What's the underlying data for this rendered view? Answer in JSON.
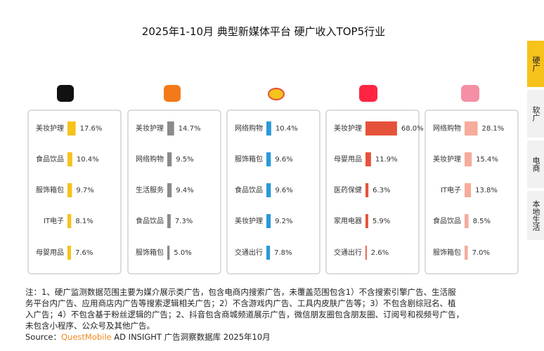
{
  "title": "2025年1-10月 典型新媒体平台 硬广收入TOP5行业",
  "tabs": [
    "硬广",
    "软广",
    "电商",
    "本地生活"
  ],
  "note": [
    "注：1、硬广监测数据范围主要为媒介展示类广告，包含电商内搜索广告，未覆盖范围包含1）不含搜索引擎广告、生活服",
    "务平台内广告、应用商店内广告等搜索逻辑相关广告；2）不含游戏内广告、工具内皮肤广告等；3）不包含剧综冠名、植",
    "入广告；4）不包含基于粉丝逻辑的广告；2、抖音包含商城频道展示广告，微信朋友圈包含朋友圈、订阅号和视频号广告，",
    "未包含小程序、公众号及其他广告。"
  ],
  "source": {
    "prefix": "Source：",
    "brand": "QuestMobile",
    "rest": " AD INSIGHT 广告洞察数据库 2025年10月"
  },
  "chart_data": [
    {
      "type": "bar",
      "color": "#f6c21c",
      "categories": [
        "美妆护理",
        "食品饮品",
        "服饰箱包",
        "IT电子",
        "母婴用品"
      ],
      "values": [
        17.6,
        10.4,
        9.7,
        8.1,
        7.6
      ],
      "value_labels": [
        "17.6%",
        "10.4%",
        "9.7%",
        "8.1%",
        "7.6%"
      ]
    },
    {
      "type": "bar",
      "color": "#8a8a8a",
      "categories": [
        "美妆护理",
        "网络购物",
        "生活服务",
        "食品饮品",
        "服饰箱包"
      ],
      "values": [
        14.7,
        9.5,
        9.4,
        7.3,
        5.0
      ],
      "value_labels": [
        "14.7%",
        "9.5%",
        "9.4%",
        "7.3%",
        "5.0%"
      ]
    },
    {
      "type": "bar",
      "color": "#2a9ad8",
      "categories": [
        "网络购物",
        "服饰箱包",
        "食品饮品",
        "美妆护理",
        "交通出行"
      ],
      "values": [
        10.4,
        9.6,
        9.6,
        9.2,
        7.8
      ],
      "value_labels": [
        "10.4%",
        "9.6%",
        "9.6%",
        "9.2%",
        "7.8%"
      ]
    },
    {
      "type": "bar",
      "color": "#e5523a",
      "categories": [
        "美妆护理",
        "母婴用品",
        "医药保健",
        "家用电器",
        "交通出行"
      ],
      "values": [
        68.0,
        11.9,
        6.3,
        5.9,
        2.6
      ],
      "value_labels": [
        "68.0%",
        "11.9%",
        "6.3%",
        "5.9%",
        "2.6%"
      ]
    },
    {
      "type": "bar",
      "color": "#f6ab9c",
      "categories": [
        "网络购物",
        "美妆护理",
        "IT电子",
        "食品饮品",
        "服饰箱包"
      ],
      "values": [
        28.1,
        15.4,
        13.8,
        8.5,
        7.0
      ],
      "value_labels": [
        "28.1%",
        "15.4%",
        "13.8%",
        "8.5%",
        "7.0%"
      ]
    }
  ]
}
